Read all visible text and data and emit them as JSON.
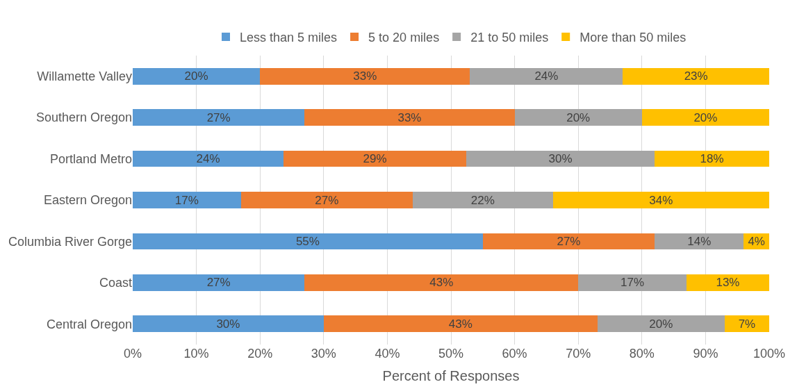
{
  "chart_data": {
    "type": "bar",
    "orientation": "horizontal",
    "stacked": true,
    "categories": [
      "Willamette Valley",
      "Southern Oregon",
      "Portland Metro",
      "Eastern Oregon",
      "Columbia River Gorge",
      "Coast",
      "Central Oregon"
    ],
    "series": [
      {
        "name": "Less than 5 miles",
        "color": "#5b9bd5",
        "values": [
          20,
          27,
          23.7,
          17,
          55,
          27,
          30
        ],
        "value_labels": [
          "20%",
          "27%",
          "24%",
          "17%",
          "55%",
          "27%",
          "30%"
        ]
      },
      {
        "name": "5 to 20 miles",
        "color": "#ed7d31",
        "values": [
          33,
          33,
          28.7,
          27,
          27,
          43,
          43
        ],
        "value_labels": [
          "33%",
          "33%",
          "29%",
          "27%",
          "27%",
          "43%",
          "43%"
        ]
      },
      {
        "name": "21 to 50 miles",
        "color": "#a5a5a5",
        "values": [
          24,
          20,
          29.6,
          22,
          14,
          17,
          20
        ],
        "value_labels": [
          "24%",
          "20%",
          "30%",
          "22%",
          "14%",
          "17%",
          "20%"
        ]
      },
      {
        "name": "More than 50 miles",
        "color": "#ffc000",
        "values": [
          23,
          20,
          18,
          34,
          4,
          13,
          7
        ],
        "value_labels": [
          "23%",
          "20%",
          "18%",
          "34%",
          "4%",
          "13%",
          "7%"
        ]
      }
    ],
    "xlabel": "Percent of Responses",
    "xlim": [
      0,
      100
    ],
    "xticks": [
      {
        "value": 0,
        "label": "0%"
      },
      {
        "value": 10,
        "label": "10%"
      },
      {
        "value": 20,
        "label": "20%"
      },
      {
        "value": 30,
        "label": "30%"
      },
      {
        "value": 40,
        "label": "40%"
      },
      {
        "value": 50,
        "label": "50%"
      },
      {
        "value": 60,
        "label": "60%"
      },
      {
        "value": 70,
        "label": "70%"
      },
      {
        "value": 80,
        "label": "80%"
      },
      {
        "value": 90,
        "label": "90%"
      },
      {
        "value": 100,
        "label": "100%"
      }
    ],
    "grid": "x",
    "legend": "top"
  }
}
